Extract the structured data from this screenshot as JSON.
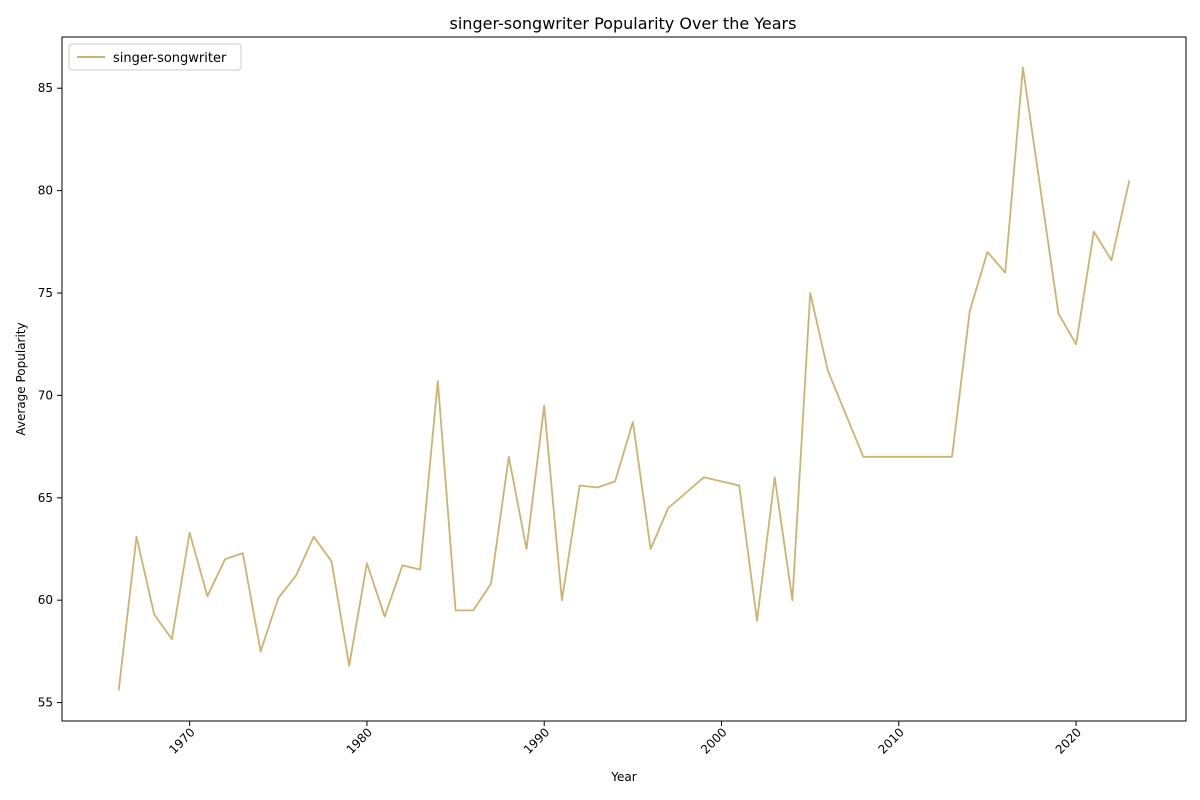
{
  "chart_data": {
    "type": "line",
    "title": "singer-songwriter Popularity Over the Years",
    "xlabel": "Year",
    "ylabel": "Average Popularity",
    "xlim": [
      1962.8,
      2026.2
    ],
    "ylim": [
      54.1,
      87.5
    ],
    "xticks": [
      "1970",
      "1980",
      "1990",
      "2000",
      "2010",
      "2020"
    ],
    "yticks": [
      "55",
      "60",
      "65",
      "70",
      "75",
      "80",
      "85"
    ],
    "grid": false,
    "legend_position": "top-left",
    "series": [
      {
        "name": "singer-songwriter",
        "color": "#cdb36e",
        "x": [
          1966,
          1967,
          1968,
          1969,
          1970,
          1971,
          1972,
          1973,
          1974,
          1975,
          1976,
          1977,
          1978,
          1979,
          1980,
          1981,
          1982,
          1983,
          1984,
          1985,
          1986,
          1987,
          1988,
          1989,
          1990,
          1991,
          1992,
          1993,
          1994,
          1995,
          1996,
          1997,
          1999,
          2001,
          2002,
          2003,
          2004,
          2005,
          2006,
          2008,
          2013,
          2014,
          2015,
          2016,
          2017,
          2019,
          2020,
          2021,
          2022,
          2023
        ],
        "y": [
          55.6,
          63.1,
          59.3,
          58.1,
          63.3,
          60.2,
          62.0,
          62.3,
          57.5,
          60.1,
          61.2,
          63.1,
          61.9,
          56.8,
          61.8,
          59.2,
          61.7,
          61.5,
          70.7,
          59.5,
          59.5,
          60.8,
          67.0,
          62.5,
          69.5,
          60.0,
          65.6,
          65.5,
          65.8,
          68.7,
          62.5,
          64.5,
          66.0,
          65.6,
          59.0,
          66.0,
          60.0,
          75.0,
          71.2,
          67.0,
          67.0,
          74.1,
          77.0,
          76.0,
          86.0,
          74.0,
          72.5,
          78.0,
          76.6,
          80.5
        ]
      }
    ]
  }
}
